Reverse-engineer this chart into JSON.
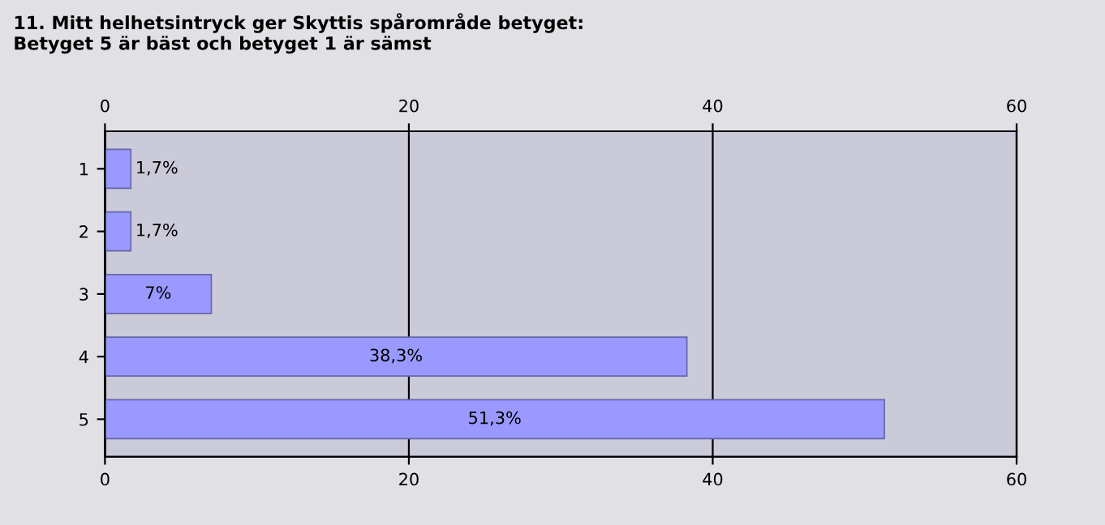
{
  "chart_data": {
    "type": "bar",
    "orientation": "horizontal",
    "title": "11. Mitt helhetsintryck ger Skyttis spårområde betyget:\nBetyget 5 är bäst och betyget 1 är sämst",
    "categories": [
      "1",
      "2",
      "3",
      "4",
      "5"
    ],
    "values": [
      1.7,
      1.7,
      7,
      38.3,
      51.3
    ],
    "value_labels": [
      "1,7%",
      "1,7%",
      "7%",
      "38,3%",
      "51,3%"
    ],
    "color": "#9999ff",
    "xlim": [
      0,
      60
    ],
    "xticks": [
      0,
      20,
      40,
      60
    ],
    "x2lim": [
      0,
      60
    ],
    "x2ticks": [
      0,
      20,
      40,
      60
    ],
    "grid": "x"
  }
}
